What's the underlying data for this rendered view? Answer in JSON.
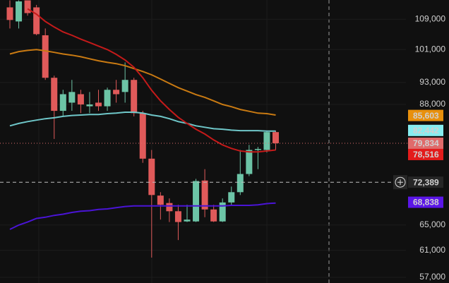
{
  "chart_data": {
    "type": "candlestick",
    "log_scale": true,
    "grid": true,
    "ylim": [
      56200,
      114400
    ],
    "yticks": [
      {
        "value": 109000,
        "label": "109,000"
      },
      {
        "value": 101000,
        "label": "101,000"
      },
      {
        "value": 93000,
        "label": "93,000"
      },
      {
        "value": 88000,
        "label": "88,000"
      },
      {
        "value": 65000,
        "label": "65,000"
      },
      {
        "value": 61000,
        "label": "61,000"
      },
      {
        "value": 57000,
        "label": "57,000"
      }
    ],
    "up_color": "#6cc4a6",
    "down_color": "#e05a5a",
    "open": [
      112300,
      108400,
      114300,
      112300,
      104700,
      94100,
      86600,
      88400,
      90300,
      87600,
      88400,
      87600,
      91300,
      90800,
      93600,
      86100,
      76800,
      70000,
      68700,
      67300,
      65600,
      65600,
      72700,
      67600,
      65600,
      68800,
      70600,
      73900,
      78500,
      78500,
      82100
    ],
    "high": [
      114300,
      114300,
      114300,
      113000,
      106500,
      94600,
      91300,
      93600,
      91300,
      90800,
      91300,
      91800,
      93600,
      97800,
      94100,
      86600,
      78500,
      70600,
      69500,
      68400,
      68400,
      73000,
      74800,
      68400,
      69500,
      71600,
      78500,
      79500,
      79100,
      82400,
      82400
    ],
    "low": [
      106500,
      106500,
      110000,
      104700,
      93600,
      80700,
      85400,
      86600,
      86100,
      86100,
      86600,
      86600,
      88400,
      88400,
      85400,
      76000,
      59900,
      65900,
      65500,
      62600,
      65500,
      65500,
      66300,
      65500,
      65500,
      68400,
      70100,
      73500,
      74800,
      78000,
      78500
    ],
    "close": [
      108800,
      114000,
      110700,
      105000,
      94100,
      86600,
      90300,
      90800,
      88000,
      88000,
      87600,
      91300,
      90300,
      93600,
      86100,
      76800,
      70100,
      68400,
      67300,
      65500,
      65900,
      72600,
      67600,
      65600,
      68800,
      70600,
      73900,
      78500,
      78700,
      82100,
      79834
    ],
    "series": [
      {
        "color": "#c97a12",
        "values": [
          99900,
          100500,
          100800,
          101000,
          100700,
          100300,
          99900,
          99600,
          99200,
          98700,
          98200,
          97800,
          97500,
          97000,
          96300,
          95600,
          94800,
          93800,
          92800,
          91800,
          91000,
          90200,
          89600,
          88800,
          88000,
          87500,
          86900,
          86500,
          86100,
          86000,
          85700
        ]
      },
      {
        "color": "#6fc7c9",
        "values": [
          83400,
          83900,
          84300,
          84600,
          84900,
          85100,
          85400,
          85600,
          85700,
          85800,
          85800,
          86000,
          86100,
          86300,
          86300,
          86100,
          85700,
          85400,
          84900,
          84300,
          83900,
          83400,
          83100,
          82800,
          82700,
          82500,
          82400,
          82400,
          82400,
          82300,
          82300
        ]
      },
      {
        "color": "#c41a1a",
        "values": [
          null,
          null,
          111900,
          110400,
          108400,
          106900,
          105600,
          104700,
          103700,
          102800,
          101900,
          101000,
          99800,
          98400,
          96600,
          94100,
          91200,
          88800,
          86900,
          85200,
          83900,
          82700,
          81700,
          80500,
          79500,
          78800,
          78300,
          78100,
          78100,
          78300,
          78500
        ]
      },
      {
        "color": "#4a14d6",
        "values": [
          64300,
          65000,
          65500,
          66100,
          66300,
          66600,
          66800,
          67100,
          67300,
          67400,
          67600,
          67700,
          67900,
          68100,
          68200,
          68200,
          68200,
          68200,
          68200,
          68200,
          68200,
          68200,
          68200,
          68200,
          68200,
          68300,
          68300,
          68300,
          68400,
          68600,
          68700
        ]
      }
    ],
    "price_labels": [
      {
        "value": 85603,
        "label": "85,603",
        "color": "#e8900c",
        "text_color": "#ffffff"
      },
      {
        "value": 82442,
        "label": "82,442",
        "color": "#86edf0",
        "text_color": "#111111"
      },
      {
        "value": 79834,
        "label": "79,834",
        "color": "#e06b6b",
        "text_color": "#ffffff"
      },
      {
        "value": 78516,
        "label": "78,516",
        "color": "#e31b1b",
        "text_color": "#ffffff"
      },
      {
        "value": 72389,
        "label": "72,389",
        "color": "#262626",
        "text_color": "#ffffff"
      },
      {
        "value": 68838,
        "label": "68,838",
        "color": "#5b16e8",
        "text_color": "#ffffff"
      }
    ]
  }
}
